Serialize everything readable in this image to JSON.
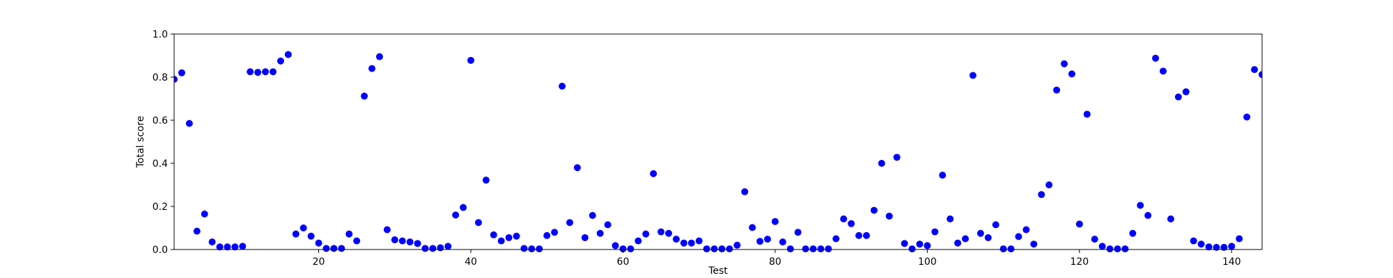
{
  "chart_data": {
    "type": "scatter",
    "title": "",
    "xlabel": "Test",
    "ylabel": "Total score",
    "xlim": [
      1,
      144
    ],
    "ylim": [
      0.0,
      1.0
    ],
    "xticks": [
      20,
      40,
      60,
      80,
      100,
      120,
      140
    ],
    "xtick_labels": [
      "20",
      "40",
      "60",
      "80",
      "100",
      "120",
      "140"
    ],
    "yticks": [
      0.0,
      0.2,
      0.4,
      0.6,
      0.8,
      1.0
    ],
    "ytick_labels": [
      "0.0",
      "0.2",
      "0.4",
      "0.6",
      "0.8",
      "1.0"
    ],
    "grid": false,
    "legend": false,
    "marker_color": "#0000ff",
    "series": [
      {
        "x": [
          1,
          2,
          3,
          4,
          5,
          6,
          7,
          8,
          9,
          10,
          11,
          12,
          13,
          14,
          15,
          16,
          17,
          18,
          19,
          20,
          21,
          22,
          23,
          24,
          25,
          26,
          27,
          28,
          29,
          30,
          31,
          32,
          33,
          34,
          35,
          36,
          37,
          38,
          39,
          40,
          41,
          42,
          43,
          44,
          45,
          46,
          47,
          48,
          49,
          50,
          51,
          52,
          53,
          54,
          55,
          56,
          57,
          58,
          59,
          60,
          61,
          62,
          63,
          64,
          65,
          66,
          67,
          68,
          69,
          70,
          71,
          72,
          73,
          74,
          75,
          76,
          77,
          78,
          79,
          80,
          81,
          82,
          83,
          84,
          85,
          86,
          87,
          88,
          89,
          90,
          91,
          92,
          93,
          94,
          95,
          96,
          97,
          98,
          99,
          100,
          101,
          102,
          103,
          104,
          105,
          106,
          107,
          108,
          109,
          110,
          111,
          112,
          113,
          114,
          115,
          116,
          117,
          118,
          119,
          120,
          121,
          122,
          123,
          124,
          125,
          126,
          127,
          128,
          129,
          130,
          131,
          132,
          133,
          134,
          135,
          136,
          137,
          138,
          139,
          140,
          141,
          142,
          143,
          144
        ],
        "y": [
          0.79,
          0.82,
          0.585,
          0.085,
          0.165,
          0.035,
          0.012,
          0.012,
          0.012,
          0.015,
          0.825,
          0.822,
          0.825,
          0.825,
          0.875,
          0.905,
          0.072,
          0.1,
          0.062,
          0.03,
          0.005,
          0.005,
          0.005,
          0.072,
          0.04,
          0.712,
          0.84,
          0.895,
          0.092,
          0.045,
          0.04,
          0.035,
          0.028,
          0.005,
          0.005,
          0.008,
          0.015,
          0.16,
          0.195,
          0.878,
          0.125,
          0.322,
          0.068,
          0.04,
          0.055,
          0.062,
          0.005,
          0.003,
          0.003,
          0.065,
          0.08,
          0.758,
          0.125,
          0.38,
          0.055,
          0.158,
          0.075,
          0.115,
          0.018,
          0.003,
          0.003,
          0.04,
          0.072,
          0.352,
          0.082,
          0.075,
          0.048,
          0.03,
          0.03,
          0.04,
          0.003,
          0.003,
          0.003,
          0.003,
          0.02,
          0.268,
          0.102,
          0.038,
          0.048,
          0.13,
          0.035,
          0.003,
          0.08,
          0.003,
          0.003,
          0.003,
          0.003,
          0.05,
          0.142,
          0.12,
          0.065,
          0.065,
          0.182,
          0.4,
          0.155,
          0.428,
          0.028,
          0.003,
          0.025,
          0.018,
          0.082,
          0.345,
          0.142,
          0.03,
          0.05,
          0.808,
          0.075,
          0.055,
          0.115,
          0.003,
          0.003,
          0.06,
          0.092,
          0.025,
          0.255,
          0.3,
          0.74,
          0.862,
          0.815,
          0.118,
          0.628,
          0.048,
          0.015,
          0.003,
          0.003,
          0.003,
          0.075,
          0.205,
          0.158,
          0.888,
          0.828,
          0.142,
          0.708,
          0.732,
          0.04,
          0.025,
          0.012,
          0.01,
          0.01,
          0.015,
          0.05,
          0.615,
          0.835,
          0.812
        ]
      }
    ]
  }
}
